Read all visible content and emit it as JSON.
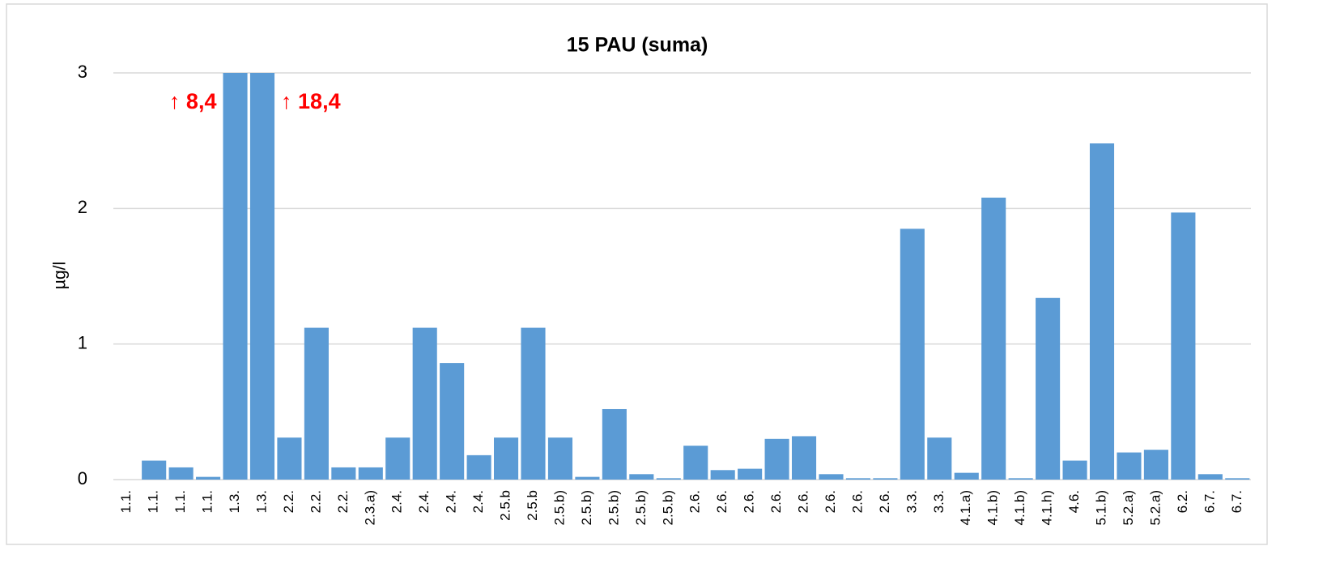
{
  "chart_data": {
    "type": "bar",
    "title": "15 PAU (suma)",
    "y_label": "µg/l",
    "categories": [
      "1.1.",
      "1.1.",
      "1.1.",
      "1.1.",
      "1.3.",
      "1.3.",
      "2.2.",
      "2.2.",
      "2.2.",
      "2.3.a)",
      "2.4.",
      "2.4.",
      "2.4.",
      "2.4.",
      "2.5.b",
      "2.5.b",
      "2.5.b)",
      "2.5.b)",
      "2.5.b)",
      "2.5.b)",
      "2.5.b)",
      "2.6.",
      "2.6.",
      "2.6.",
      "2.6.",
      "2.6.",
      "2.6.",
      "2.6.",
      "2.6.",
      "3.3.",
      "3.3.",
      "4.1.a)",
      "4.1.b)",
      "4.1.b)",
      "4.1.h)",
      "4.6.",
      "5.1.b)",
      "5.2.a)",
      "5.2.a)",
      "6.2.",
      "6.7.",
      "6.7."
    ],
    "values": [
      0,
      0.14,
      0.09,
      0.02,
      8.4,
      18.4,
      0.31,
      1.12,
      0.09,
      0.09,
      0.31,
      1.12,
      0.86,
      0.18,
      0.31,
      1.12,
      0.31,
      0.02,
      0.52,
      0.04,
      0.01,
      0.25,
      0.07,
      0.08,
      0.3,
      0.32,
      0.04,
      0.01,
      0.01,
      1.85,
      0.31,
      0.05,
      2.08,
      0.01,
      1.34,
      0.14,
      2.48,
      0.2,
      0.22,
      1.97,
      0.04,
      0.01
    ],
    "value_labels": [
      null,
      null,
      null,
      null,
      "↑ 8,4",
      "↑ 18,4",
      null,
      null,
      null,
      null,
      null,
      null,
      null,
      null,
      null,
      null,
      null,
      null,
      null,
      null,
      null,
      null,
      null,
      null,
      null,
      null,
      null,
      null,
      null,
      null,
      null,
      null,
      null,
      null,
      null,
      null,
      null,
      null,
      null,
      null,
      null,
      null
    ],
    "value_label_color": "#ff0000",
    "color": "#5b9bd5",
    "ylim": [
      0,
      3
    ],
    "yticks": [
      0,
      1,
      2,
      3
    ],
    "grid": true
  }
}
